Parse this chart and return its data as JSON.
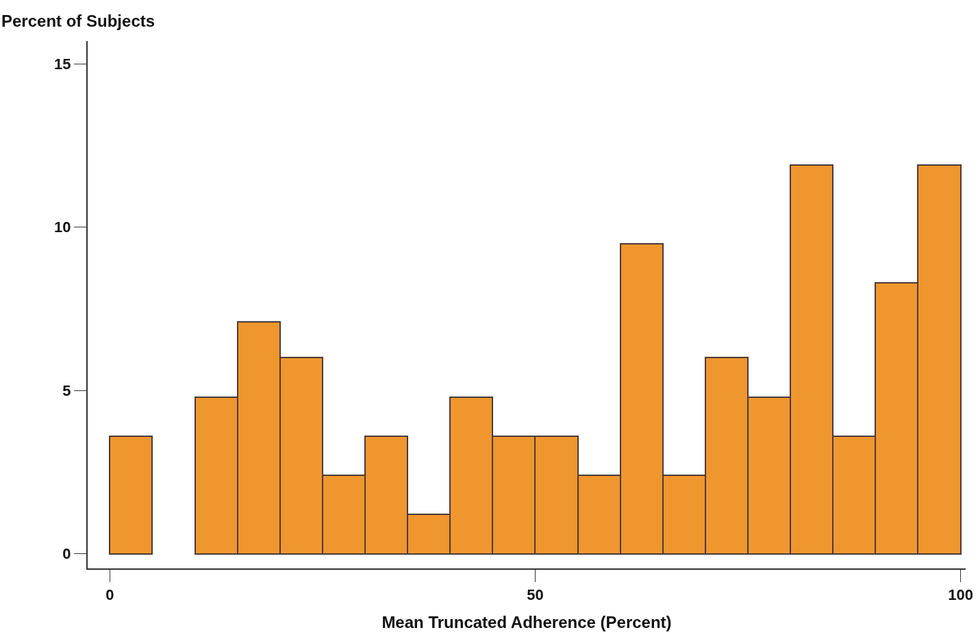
{
  "chart_data": {
    "type": "histogram",
    "xlabel": "Mean Truncated Adherence (Percent)",
    "ylabel": "Percent of Subjects",
    "bins": [
      0,
      5,
      10,
      15,
      20,
      25,
      30,
      35,
      40,
      45,
      50,
      55,
      60,
      65,
      70,
      75,
      80,
      85,
      90,
      95,
      100
    ],
    "values": [
      3.6,
      0,
      4.8,
      7.1,
      6.0,
      2.4,
      3.6,
      1.2,
      4.8,
      3.6,
      3.6,
      2.4,
      9.5,
      2.4,
      6.0,
      4.8,
      11.9,
      3.6,
      8.3,
      11.9
    ],
    "color": "#f0962e",
    "xlim": [
      -2.6,
      100.6
    ],
    "xticks": [
      0,
      50,
      100
    ],
    "ylim": [
      -0.45,
      15.7
    ],
    "yticks": [
      0,
      5,
      10,
      15
    ],
    "grid": false
  }
}
